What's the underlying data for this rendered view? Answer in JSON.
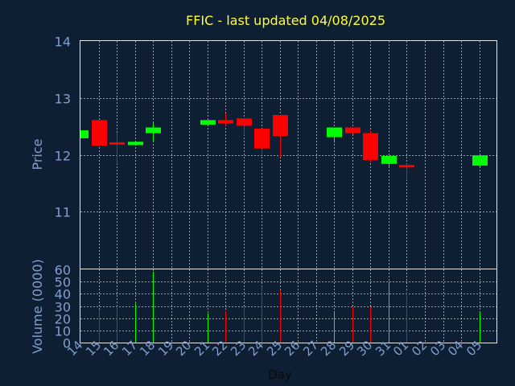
{
  "chart_data": {
    "type": "candlestick",
    "title": "FFIC - last updated 04/08/2025",
    "xlabel": "Day",
    "x_tick_labels": [
      "14",
      "15",
      "16",
      "17",
      "18",
      "19",
      "20",
      "21",
      "22",
      "23",
      "24",
      "25",
      "26",
      "27",
      "28",
      "29",
      "30",
      "31",
      "01",
      "02",
      "03",
      "04",
      "05"
    ],
    "price_panel": {
      "ylabel": "Price",
      "ylim": [
        10,
        14
      ],
      "yticks": [
        11,
        12,
        13,
        14
      ],
      "grid": true,
      "candles": [
        {
          "x": 14,
          "open": 12.29,
          "close": 12.43,
          "high": 12.43,
          "low": 12.29
        },
        {
          "x": 15,
          "open": 12.61,
          "close": 12.16,
          "high": 12.61,
          "low": 12.16
        },
        {
          "x": 16,
          "open": 12.22,
          "close": 12.18,
          "high": 12.39,
          "low": 11.84
        },
        {
          "x": 17,
          "open": 12.17,
          "close": 12.23,
          "high": 12.23,
          "low": 12.17
        },
        {
          "x": 18,
          "open": 12.38,
          "close": 12.48,
          "high": 12.56,
          "low": 12.23
        },
        {
          "x": 21,
          "open": 12.53,
          "close": 12.61,
          "high": 12.61,
          "low": 12.53
        },
        {
          "x": 22,
          "open": 12.61,
          "close": 12.55,
          "high": 12.73,
          "low": 12.51
        },
        {
          "x": 23,
          "open": 12.64,
          "close": 12.51,
          "high": 12.64,
          "low": 12.34
        },
        {
          "x": 24,
          "open": 12.46,
          "close": 12.11,
          "high": 12.46,
          "low": 11.99
        },
        {
          "x": 25,
          "open": 12.7,
          "close": 12.33,
          "high": 12.7,
          "low": 11.96
        },
        {
          "x": 28,
          "open": 12.31,
          "close": 12.48,
          "high": 12.48,
          "low": 12.21
        },
        {
          "x": 29,
          "open": 12.48,
          "close": 12.38,
          "high": 12.48,
          "low": 12.36
        },
        {
          "x": 30,
          "open": 12.38,
          "close": 11.91,
          "high": 12.43,
          "low": 11.86
        },
        {
          "x": 31,
          "open": 11.84,
          "close": 11.98,
          "high": 11.98,
          "low": 11.79
        },
        {
          "x": 32,
          "open": 11.82,
          "close": 11.8,
          "high": 11.84,
          "low": 11.56
        },
        {
          "x": 36,
          "open": 11.81,
          "close": 11.99,
          "high": 11.99,
          "low": 11.78
        }
      ]
    },
    "volume_panel": {
      "ylabel": "Volume (0000)",
      "ylim": [
        0,
        60
      ],
      "yticks": [
        0,
        10,
        20,
        30,
        40,
        50,
        60
      ],
      "grid": true,
      "bars": [
        {
          "x": 15,
          "value": 27,
          "direction": "down"
        },
        {
          "x": 16,
          "value": 30,
          "direction": "down"
        },
        {
          "x": 17,
          "value": 32,
          "direction": "up"
        },
        {
          "x": 18,
          "value": 58,
          "direction": "up"
        },
        {
          "x": 21,
          "value": 24,
          "direction": "up"
        },
        {
          "x": 22,
          "value": 26,
          "direction": "down"
        },
        {
          "x": 23,
          "value": 29,
          "direction": "down"
        },
        {
          "x": 24,
          "value": 46,
          "direction": "down"
        },
        {
          "x": 25,
          "value": 43,
          "direction": "down"
        },
        {
          "x": 28,
          "value": 26,
          "direction": "up"
        },
        {
          "x": 29,
          "value": 29,
          "direction": "down"
        },
        {
          "x": 30,
          "value": 29,
          "direction": "down"
        },
        {
          "x": 31,
          "value": 50,
          "direction": "up"
        },
        {
          "x": 32,
          "value": 42,
          "direction": "down"
        },
        {
          "x": 36,
          "value": 25,
          "direction": "up"
        }
      ]
    }
  },
  "colors": {
    "background": "#0f1f33",
    "title": "#ffff33",
    "axis_text": "#7f9fd0",
    "xlabel": "#0a0a0a",
    "frame": "#e6e6e6",
    "grid": "#ffffff",
    "up": "#00ff00",
    "down": "#ff0000"
  }
}
